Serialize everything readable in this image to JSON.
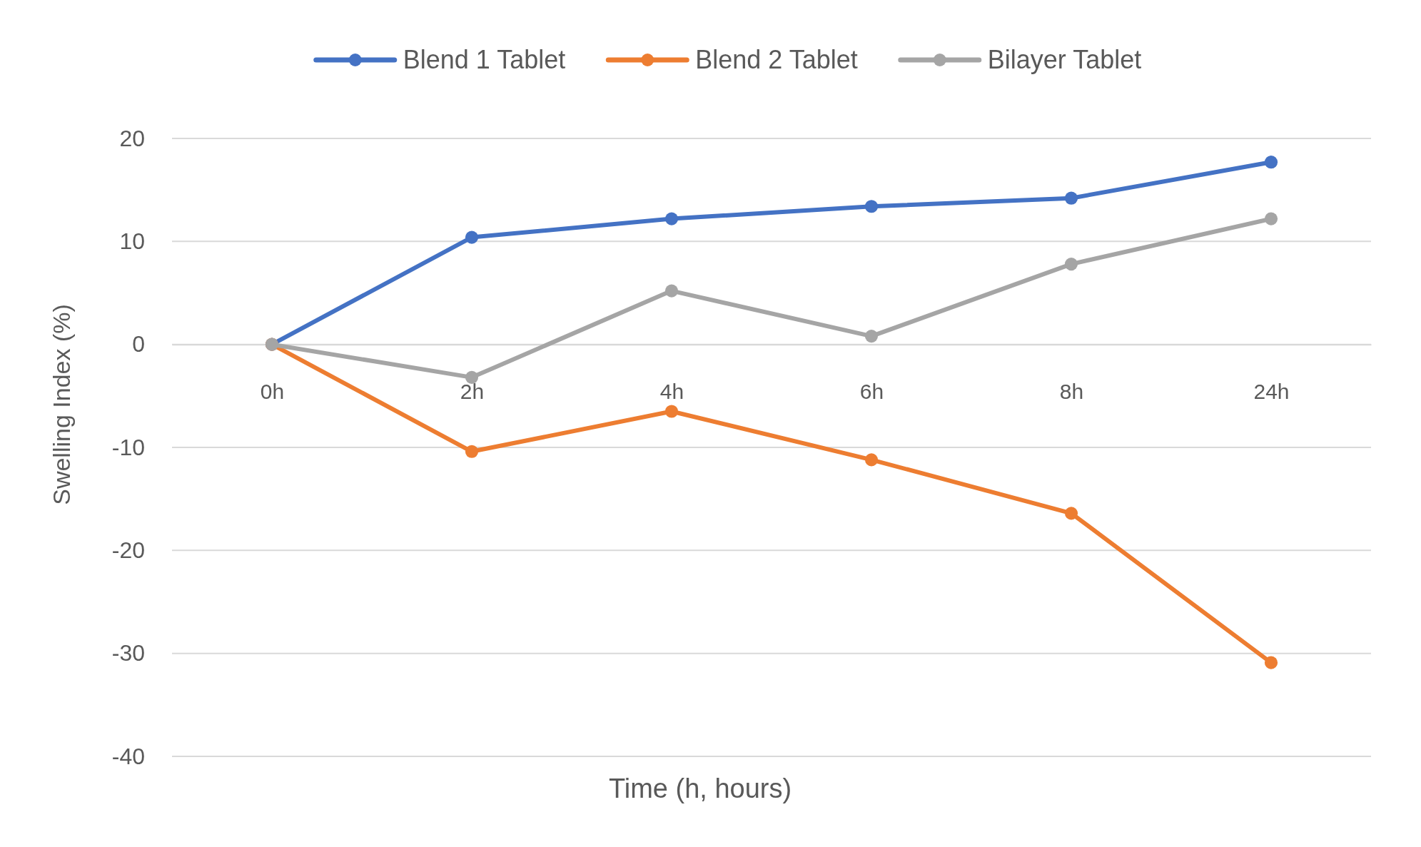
{
  "chart_data": {
    "type": "line",
    "xlabel": "Time (h, hours)",
    "ylabel": "Swelling Index (%)",
    "categories": [
      "0h",
      "2h",
      "4h",
      "6h",
      "8h",
      "24h"
    ],
    "series": [
      {
        "name": "Blend 1 Tablet",
        "color": "#4472c4",
        "values": [
          0,
          10.4,
          12.2,
          13.4,
          14.2,
          17.7
        ]
      },
      {
        "name": "Blend 2 Tablet",
        "color": "#ed7d31",
        "values": [
          0,
          -10.4,
          -6.5,
          -11.2,
          -16.4,
          -30.9
        ]
      },
      {
        "name": "Bilayer Tablet",
        "color": "#a5a5a5",
        "values": [
          0,
          -3.2,
          5.2,
          0.8,
          7.8,
          12.2
        ]
      }
    ],
    "ylim": [
      -40,
      20
    ],
    "yticks": [
      -40,
      -30,
      -20,
      -10,
      0,
      10,
      20
    ],
    "grid": "y",
    "legend": "top",
    "marker": "circle",
    "line_style": "solid"
  }
}
